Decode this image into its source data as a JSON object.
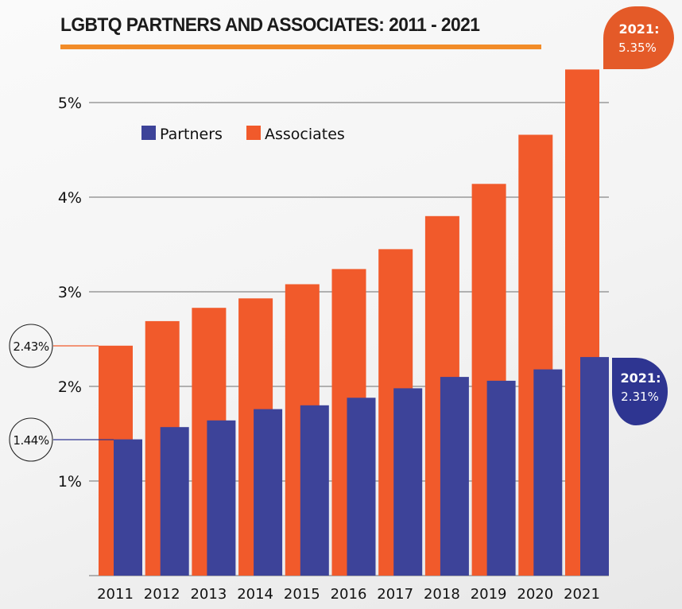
{
  "colors": {
    "partners": "#3d4399",
    "associates": "#f15a2b",
    "callout_partners": "#2e3591",
    "callout_associates": "#e45a28",
    "title_underline": "#f28c28",
    "gridline": "#9a9a9a"
  },
  "chart_data": {
    "type": "bar",
    "title": "LGBTQ PARTNERS AND ASSOCIATES: 2011 - 2021",
    "xlabel": "",
    "ylabel": "",
    "ylim": [
      0,
      5.5
    ],
    "yticks": [
      1,
      2,
      3,
      4,
      5
    ],
    "ytick_labels": [
      "1%",
      "2%",
      "3%",
      "4%",
      "5%"
    ],
    "grid": true,
    "legend_position": "top-left",
    "categories": [
      "2011",
      "2012",
      "2013",
      "2014",
      "2015",
      "2016",
      "2017",
      "2018",
      "2019",
      "2020",
      "2021"
    ],
    "series": [
      {
        "name": "Partners",
        "values": [
          1.44,
          1.57,
          1.64,
          1.76,
          1.8,
          1.88,
          1.98,
          2.1,
          2.06,
          2.18,
          2.31
        ]
      },
      {
        "name": "Associates",
        "values": [
          2.43,
          2.69,
          2.83,
          2.93,
          3.08,
          3.24,
          3.45,
          3.8,
          4.14,
          4.66,
          5.35
        ]
      }
    ],
    "annotations": {
      "start_associates": "2.43%",
      "start_partners": "1.44%",
      "end_associates": {
        "year": "2021:",
        "value": "5.35%"
      },
      "end_partners": {
        "year": "2021:",
        "value": "2.31%"
      }
    }
  }
}
